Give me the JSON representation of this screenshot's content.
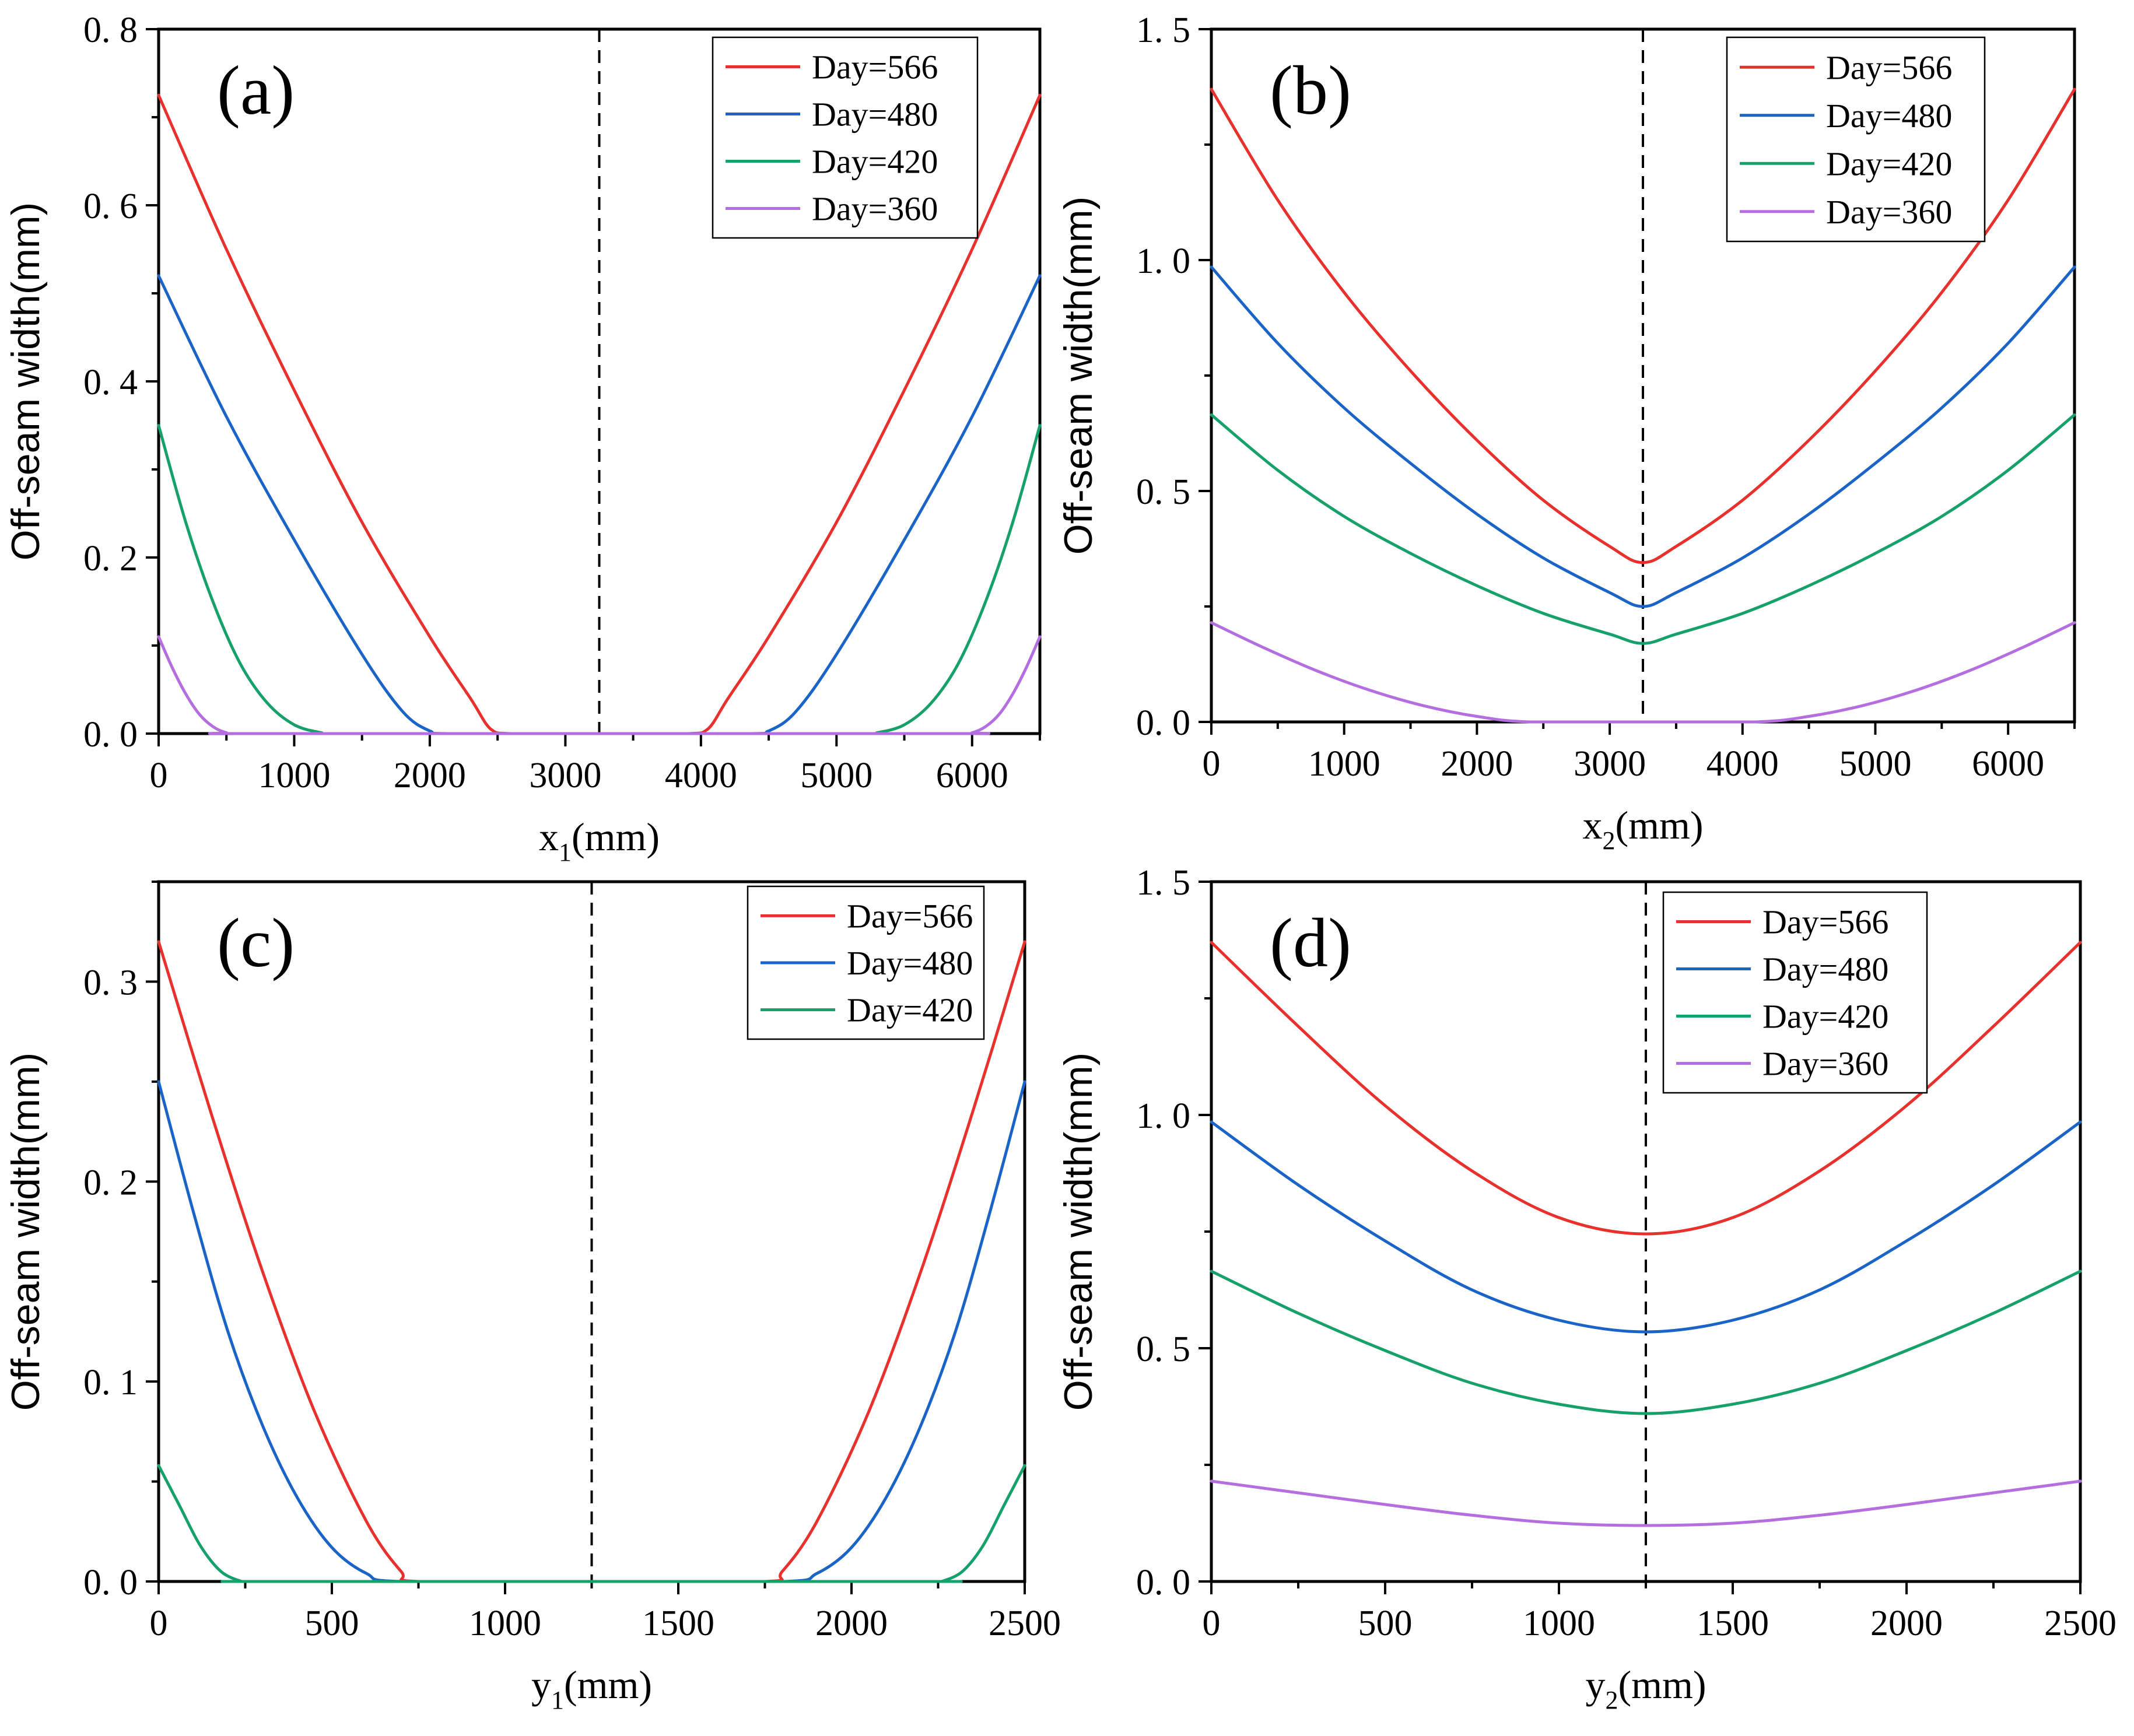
{
  "chart_data": [
    {
      "type": "line",
      "panel_label": "(a)",
      "xlabel": {
        "base": "x",
        "sub": "1",
        "suffix": "(mm)"
      },
      "ylabel": "Off-seam width(mm)",
      "xlim": [
        0,
        6500
      ],
      "ylim": [
        0,
        0.8
      ],
      "xticks": [
        0,
        1000,
        2000,
        3000,
        4000,
        5000,
        6000
      ],
      "yticks": [
        0,
        0.2,
        0.4,
        0.6,
        0.8
      ],
      "ytick_labels": [
        "0. 0",
        "0. 2",
        "0. 4",
        "0. 6",
        "0. 8"
      ],
      "xtick_labels": [
        "0",
        "1000",
        "2000",
        "3000",
        "4000",
        "5000",
        "6000"
      ],
      "dashed_x": 3250,
      "legend_position": "top-right",
      "series": [
        {
          "name": "Day=566",
          "color": "#e8302c",
          "x": [
            0,
            500,
            1000,
            1500,
            2000,
            2300,
            2450,
            2600,
            3250,
            3900,
            4050,
            4200,
            4500,
            5000,
            5500,
            6000,
            6500
          ],
          "values": [
            0.725,
            0.55,
            0.39,
            0.24,
            0.11,
            0.04,
            0.005,
            0,
            0,
            0,
            0.005,
            0.04,
            0.11,
            0.24,
            0.39,
            0.55,
            0.725
          ]
        },
        {
          "name": "Day=480",
          "color": "#1a64c8",
          "x": [
            0,
            500,
            1000,
            1500,
            1800,
            2000,
            2150,
            3250,
            4350,
            4500,
            4700,
            5000,
            5500,
            6000,
            6500
          ],
          "values": [
            0.52,
            0.36,
            0.22,
            0.09,
            0.025,
            0.003,
            0,
            0,
            0,
            0.003,
            0.025,
            0.09,
            0.22,
            0.36,
            0.52
          ]
        },
        {
          "name": "Day=420",
          "color": "#16a06a",
          "x": [
            0,
            200,
            400,
            600,
            800,
            1000,
            1200,
            1300,
            3250,
            5200,
            5300,
            5500,
            5700,
            5900,
            6100,
            6300,
            6500
          ],
          "values": [
            0.35,
            0.24,
            0.15,
            0.08,
            0.035,
            0.01,
            0.001,
            0,
            0,
            0,
            0.001,
            0.01,
            0.035,
            0.08,
            0.15,
            0.24,
            0.35
          ]
        },
        {
          "name": "Day=360",
          "color": "#b46ee0",
          "x": [
            0,
            100,
            200,
            300,
            400,
            500,
            600,
            3250,
            5900,
            6000,
            6100,
            6200,
            6300,
            6400,
            6500
          ],
          "values": [
            0.11,
            0.075,
            0.045,
            0.022,
            0.008,
            0.001,
            0,
            0,
            0,
            0.001,
            0.008,
            0.022,
            0.045,
            0.075,
            0.11
          ]
        }
      ]
    },
    {
      "type": "line",
      "panel_label": "(b)",
      "xlabel": {
        "base": "x",
        "sub": "2",
        "suffix": "(mm)"
      },
      "ylabel": "Off-seam width(mm)",
      "xlim": [
        0,
        6500
      ],
      "ylim": [
        0,
        1.5
      ],
      "xticks": [
        0,
        1000,
        2000,
        3000,
        4000,
        5000,
        6000
      ],
      "yticks": [
        0,
        0.5,
        1.0,
        1.5
      ],
      "ytick_labels": [
        "0. 0",
        "0. 5",
        "1. 0",
        "1. 5"
      ],
      "xtick_labels": [
        "0",
        "1000",
        "2000",
        "3000",
        "4000",
        "5000",
        "6000"
      ],
      "dashed_x": 3250,
      "legend_position": "top-right",
      "series": [
        {
          "name": "Day=566",
          "color": "#e8302c",
          "x": [
            0,
            500,
            1000,
            1500,
            2000,
            2500,
            3000,
            3250,
            3500,
            4000,
            4500,
            5000,
            5500,
            6000,
            6500
          ],
          "values": [
            1.37,
            1.13,
            0.93,
            0.76,
            0.61,
            0.48,
            0.38,
            0.345,
            0.38,
            0.48,
            0.61,
            0.76,
            0.93,
            1.13,
            1.37
          ]
        },
        {
          "name": "Day=480",
          "color": "#1a64c8",
          "x": [
            0,
            500,
            1000,
            1500,
            2000,
            2500,
            3000,
            3250,
            3500,
            4000,
            4500,
            5000,
            5500,
            6000,
            6500
          ],
          "values": [
            0.985,
            0.82,
            0.68,
            0.56,
            0.45,
            0.355,
            0.28,
            0.25,
            0.28,
            0.355,
            0.45,
            0.56,
            0.68,
            0.82,
            0.985
          ]
        },
        {
          "name": "Day=420",
          "color": "#16a06a",
          "x": [
            0,
            500,
            1000,
            1500,
            2000,
            2500,
            3000,
            3250,
            3500,
            4000,
            4500,
            5000,
            5500,
            6000,
            6500
          ],
          "values": [
            0.665,
            0.545,
            0.445,
            0.365,
            0.295,
            0.235,
            0.19,
            0.17,
            0.19,
            0.235,
            0.295,
            0.365,
            0.445,
            0.545,
            0.665
          ]
        },
        {
          "name": "Day=360",
          "color": "#b46ee0",
          "x": [
            0,
            400,
            800,
            1200,
            1600,
            2000,
            2400,
            3250,
            4100,
            4500,
            4900,
            5300,
            5700,
            6100,
            6500
          ],
          "values": [
            0.215,
            0.16,
            0.11,
            0.068,
            0.035,
            0.012,
            0,
            0,
            0,
            0.012,
            0.035,
            0.068,
            0.11,
            0.16,
            0.215
          ]
        }
      ]
    },
    {
      "type": "line",
      "panel_label": "(c)",
      "xlabel": {
        "base": "y",
        "sub": "1",
        "suffix": "(mm)"
      },
      "ylabel": "Off-seam width(mm)",
      "xlim": [
        0,
        2500
      ],
      "ylim": [
        0,
        0.35
      ],
      "xticks": [
        0,
        500,
        1000,
        1500,
        2000,
        2500
      ],
      "yticks": [
        0,
        0.1,
        0.2,
        0.3
      ],
      "ytick_labels": [
        "0. 0",
        "0. 1",
        "0. 2",
        "0. 3"
      ],
      "xtick_labels": [
        "0",
        "500",
        "1000",
        "1500",
        "2000",
        "2500"
      ],
      "dashed_x": 1250,
      "legend_position": "top-right",
      "series": [
        {
          "name": "Day=566",
          "color": "#e8302c",
          "x": [
            0,
            150,
            300,
            450,
            600,
            700,
            750,
            1250,
            1750,
            1800,
            1900,
            2050,
            2200,
            2350,
            2500
          ],
          "values": [
            0.32,
            0.235,
            0.155,
            0.085,
            0.03,
            0.005,
            0,
            0,
            0,
            0.005,
            0.03,
            0.085,
            0.155,
            0.235,
            0.32
          ]
        },
        {
          "name": "Day=480",
          "color": "#1a64c8",
          "x": [
            0,
            100,
            200,
            300,
            400,
            500,
            600,
            700,
            1250,
            1800,
            1900,
            2000,
            2100,
            2200,
            2300,
            2400,
            2500
          ],
          "values": [
            0.25,
            0.185,
            0.125,
            0.078,
            0.042,
            0.017,
            0.004,
            0,
            0,
            0,
            0.004,
            0.017,
            0.042,
            0.078,
            0.125,
            0.185,
            0.25
          ]
        },
        {
          "name": "Day=420",
          "color": "#16a06a",
          "x": [
            0,
            60,
            120,
            180,
            240,
            260,
            1250,
            2240,
            2260,
            2320,
            2380,
            2440,
            2500
          ],
          "values": [
            0.058,
            0.038,
            0.018,
            0.005,
            0,
            0,
            0,
            0,
            0,
            0.005,
            0.018,
            0.038,
            0.058
          ]
        }
      ]
    },
    {
      "type": "line",
      "panel_label": "(d)",
      "xlabel": {
        "base": "y",
        "sub": "2",
        "suffix": "(mm)"
      },
      "ylabel": "Off-seam width(mm)",
      "xlim": [
        0,
        2500
      ],
      "ylim": [
        0,
        1.5
      ],
      "xticks": [
        0,
        500,
        1000,
        1500,
        2000,
        2500
      ],
      "yticks": [
        0,
        0.5,
        1.0,
        1.5
      ],
      "ytick_labels": [
        "0. 0",
        "0. 5",
        "1. 0",
        "1. 5"
      ],
      "xtick_labels": [
        "0",
        "500",
        "1000",
        "1500",
        "2000",
        "2500"
      ],
      "dashed_x": 1250,
      "legend_position": "top-right",
      "series": [
        {
          "name": "Day=566",
          "color": "#e8302c",
          "x": [
            0,
            250,
            500,
            750,
            1000,
            1250,
            1500,
            1750,
            2000,
            2250,
            2500
          ],
          "values": [
            1.37,
            1.19,
            1.02,
            0.88,
            0.78,
            0.745,
            0.78,
            0.88,
            1.02,
            1.19,
            1.37
          ]
        },
        {
          "name": "Day=480",
          "color": "#1a64c8",
          "x": [
            0,
            250,
            500,
            750,
            1000,
            1250,
            1500,
            1750,
            2000,
            2250,
            2500
          ],
          "values": [
            0.985,
            0.85,
            0.73,
            0.625,
            0.56,
            0.535,
            0.56,
            0.625,
            0.73,
            0.85,
            0.985
          ]
        },
        {
          "name": "Day=420",
          "color": "#16a06a",
          "x": [
            0,
            250,
            500,
            750,
            1000,
            1250,
            1500,
            1750,
            2000,
            2250,
            2500
          ],
          "values": [
            0.665,
            0.575,
            0.495,
            0.425,
            0.38,
            0.36,
            0.38,
            0.425,
            0.495,
            0.575,
            0.665
          ]
        },
        {
          "name": "Day=360",
          "color": "#b46ee0",
          "x": [
            0,
            250,
            500,
            750,
            1000,
            1250,
            1500,
            1750,
            2000,
            2250,
            2500
          ],
          "values": [
            0.215,
            0.19,
            0.165,
            0.142,
            0.125,
            0.12,
            0.125,
            0.142,
            0.165,
            0.19,
            0.215
          ]
        }
      ]
    }
  ]
}
